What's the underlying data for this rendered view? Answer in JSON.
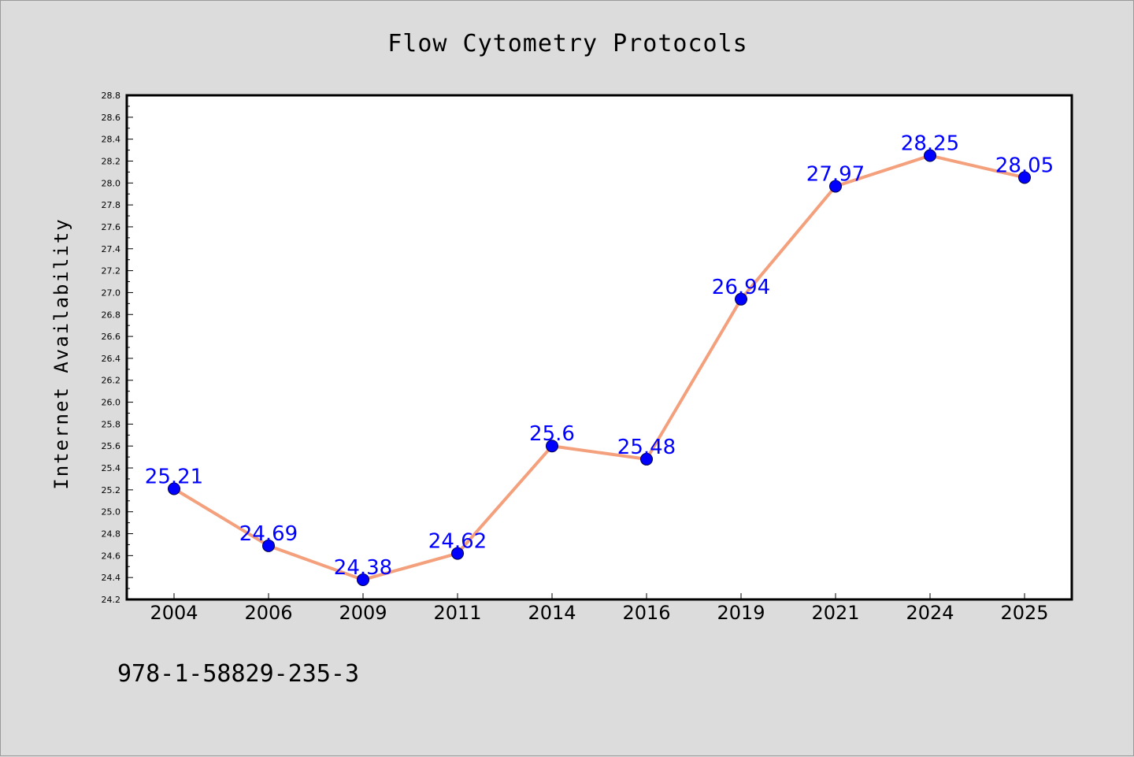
{
  "chart_data": {
    "type": "line",
    "title": "Flow Cytometry Protocols",
    "xlabel": "",
    "ylabel": "Internet Availability",
    "categories": [
      "2004",
      "2006",
      "2009",
      "2011",
      "2014",
      "2016",
      "2019",
      "2021",
      "2024",
      "2025"
    ],
    "series": [
      {
        "values": [
          25.21,
          24.69,
          24.38,
          24.62,
          25.6,
          25.48,
          26.94,
          27.97,
          28.25,
          28.05
        ],
        "labels": [
          "25.21",
          "24.69",
          "24.38",
          "24.62",
          "25.6",
          "25.48",
          "26.94",
          "27.97",
          "28.25",
          "28.05"
        ],
        "line_color": "#f4a07c",
        "marker_color": "#0000ff"
      }
    ],
    "ylim": [
      24.2,
      28.8
    ],
    "yticks": [
      "24.2",
      "24.4",
      "24.6",
      "24.8",
      "25.0",
      "25.2",
      "25.4",
      "25.6",
      "25.8",
      "26.0",
      "26.2",
      "26.4",
      "26.6",
      "26.8",
      "27.0",
      "27.2",
      "27.4",
      "27.6",
      "27.8",
      "28.0",
      "28.2",
      "28.4",
      "28.6",
      "28.8"
    ],
    "grid": false,
    "legend": "none"
  },
  "isbn": "978-1-58829-235-3",
  "colors": {
    "background": "#dcdcdc",
    "plot_background": "#ffffff",
    "line": "#f4a07c",
    "marker": "#0000ff",
    "data_label": "#0000ff"
  }
}
